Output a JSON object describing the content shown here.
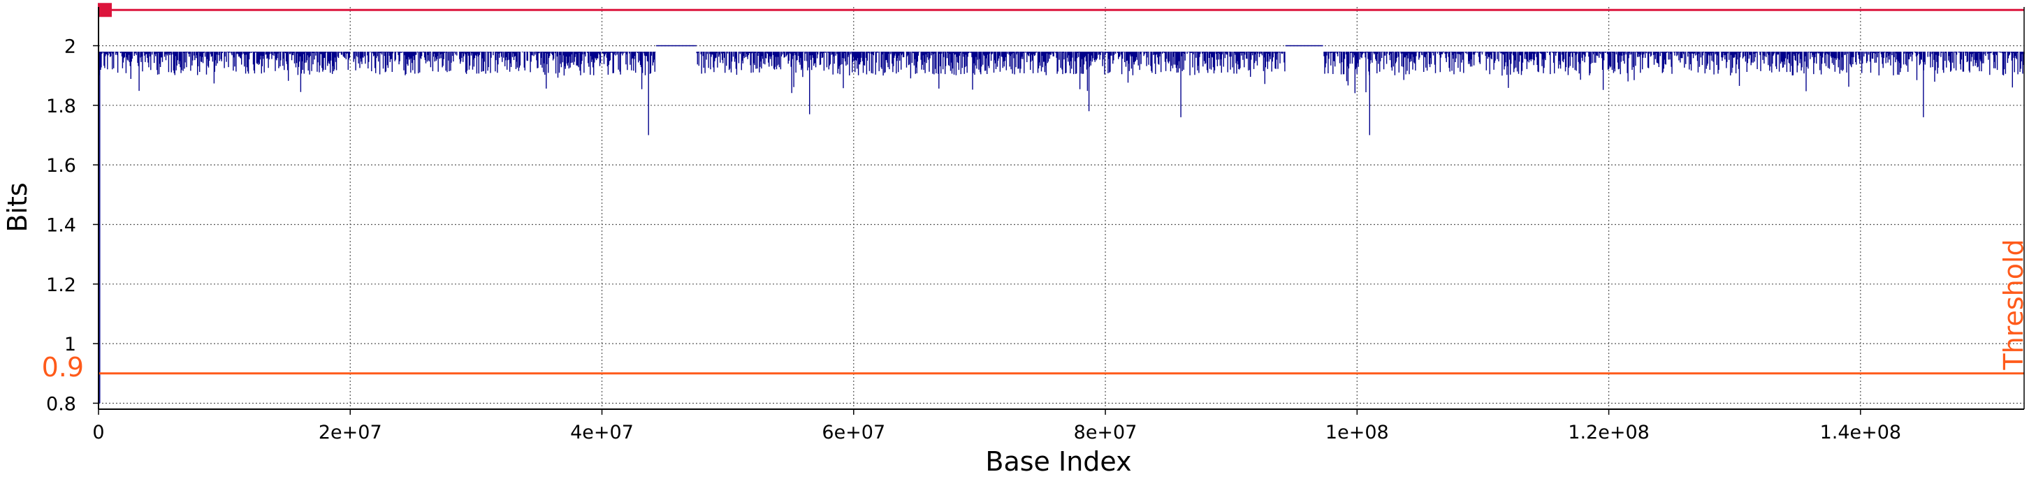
{
  "chart_data": {
    "type": "line",
    "xlabel": "Base Index",
    "ylabel": "Bits",
    "xlim": [
      0,
      153000000
    ],
    "ylim": [
      0.78,
      2.13
    ],
    "x_ticks": [
      {
        "value": 0,
        "label": "0"
      },
      {
        "value": 20000000,
        "label": "2e+07"
      },
      {
        "value": 40000000,
        "label": "4e+07"
      },
      {
        "value": 60000000,
        "label": "6e+07"
      },
      {
        "value": 80000000,
        "label": "8e+07"
      },
      {
        "value": 100000000,
        "label": "1e+08"
      },
      {
        "value": 120000000,
        "label": "1.2e+08"
      },
      {
        "value": 140000000,
        "label": "1.4e+08"
      }
    ],
    "y_ticks": [
      {
        "value": 0.8,
        "label": "0.8"
      },
      {
        "value": 1.0,
        "label": "1"
      },
      {
        "value": 1.2,
        "label": "1.2"
      },
      {
        "value": 1.4,
        "label": "1.4"
      },
      {
        "value": 1.6,
        "label": "1.6"
      },
      {
        "value": 1.8,
        "label": "1.8"
      },
      {
        "value": 2.0,
        "label": "2"
      }
    ],
    "grid": true,
    "series": [
      {
        "color": "#00008b",
        "baseline": 1.98,
        "typical_low": 1.9,
        "gaps": [
          [
            44300000,
            47500000
          ],
          [
            94300000,
            97300000
          ]
        ],
        "dips": [
          {
            "x": 100000,
            "y": 0.8
          },
          {
            "x": 43700000,
            "y": 1.7
          },
          {
            "x": 56500000,
            "y": 1.77
          },
          {
            "x": 78700000,
            "y": 1.78
          },
          {
            "x": 86000000,
            "y": 1.76
          },
          {
            "x": 101000000,
            "y": 1.7
          },
          {
            "x": 145000000,
            "y": 1.76
          }
        ]
      }
    ],
    "threshold": {
      "value": 0.9,
      "label": "Threshold",
      "value_label": "0.9",
      "color": "#ff5a1a"
    },
    "top_line": {
      "value": 2.12,
      "color": "#dc143c",
      "marker_x": 500000
    }
  }
}
